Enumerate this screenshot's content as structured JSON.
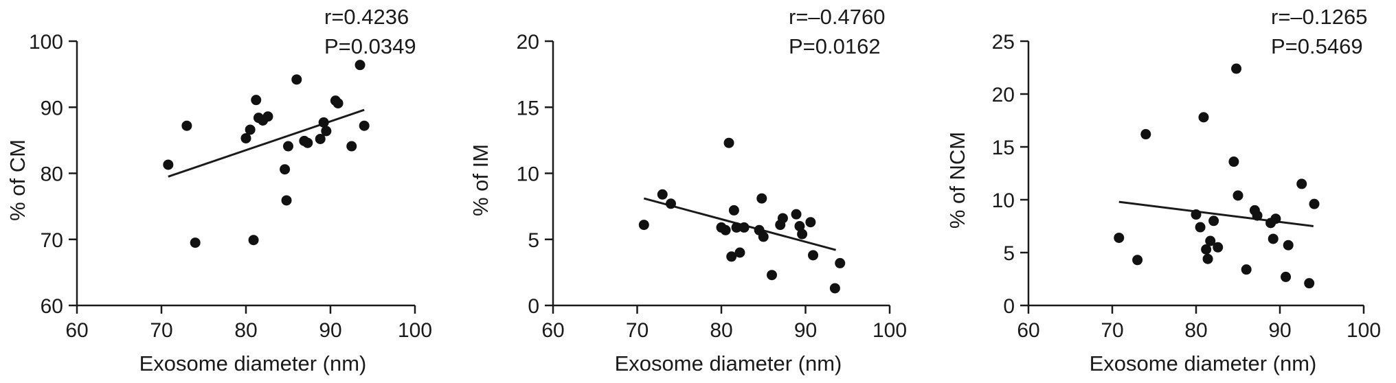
{
  "chart_data": [
    {
      "type": "scatter",
      "xlabel": "Exosome diameter (nm)",
      "ylabel": "% of CM",
      "xlim": [
        60,
        100
      ],
      "ylim": [
        60,
        100
      ],
      "xticks": [
        60,
        70,
        80,
        90,
        100
      ],
      "yticks": [
        60,
        70,
        80,
        90,
        100
      ],
      "xtick_labels": [
        "60",
        "70",
        "80",
        "90",
        "100"
      ],
      "ytick_labels": [
        "60",
        "70",
        "80",
        "90",
        "100"
      ],
      "stats": [
        "r=0.4236",
        "P=0.0349"
      ],
      "regression": {
        "x": [
          70.8,
          94
        ],
        "y": [
          79.5,
          89.6
        ]
      },
      "points": [
        {
          "x": 70.8,
          "y": 81.3
        },
        {
          "x": 73.0,
          "y": 87.2
        },
        {
          "x": 74.0,
          "y": 69.5
        },
        {
          "x": 80.0,
          "y": 85.3
        },
        {
          "x": 80.5,
          "y": 86.6
        },
        {
          "x": 80.9,
          "y": 69.9
        },
        {
          "x": 81.2,
          "y": 91.1
        },
        {
          "x": 81.5,
          "y": 88.4
        },
        {
          "x": 82.0,
          "y": 88.0
        },
        {
          "x": 82.6,
          "y": 88.6
        },
        {
          "x": 84.6,
          "y": 80.6
        },
        {
          "x": 84.8,
          "y": 75.9
        },
        {
          "x": 85.0,
          "y": 84.1
        },
        {
          "x": 86.0,
          "y": 94.2
        },
        {
          "x": 86.9,
          "y": 84.9
        },
        {
          "x": 87.3,
          "y": 84.6
        },
        {
          "x": 88.8,
          "y": 85.2
        },
        {
          "x": 89.2,
          "y": 87.7
        },
        {
          "x": 89.5,
          "y": 86.4
        },
        {
          "x": 90.6,
          "y": 91.0
        },
        {
          "x": 90.9,
          "y": 90.6
        },
        {
          "x": 92.5,
          "y": 84.1
        },
        {
          "x": 93.5,
          "y": 96.4
        },
        {
          "x": 94.0,
          "y": 87.2
        }
      ]
    },
    {
      "type": "scatter",
      "xlabel": "Exosome diameter (nm)",
      "ylabel": "% of IM",
      "xlim": [
        60,
        100
      ],
      "ylim": [
        0,
        20
      ],
      "xticks": [
        60,
        70,
        80,
        90,
        100
      ],
      "yticks": [
        0,
        5,
        10,
        15,
        20
      ],
      "xtick_labels": [
        "60",
        "70",
        "80",
        "90",
        "100"
      ],
      "ytick_labels": [
        "0",
        "5",
        "10",
        "15",
        "20"
      ],
      "stats": [
        "r=–0.4760",
        "P=0.0162"
      ],
      "regression": {
        "x": [
          70.8,
          93.6
        ],
        "y": [
          8.1,
          4.2
        ]
      },
      "points": [
        {
          "x": 70.8,
          "y": 6.1
        },
        {
          "x": 73.0,
          "y": 8.4
        },
        {
          "x": 74.0,
          "y": 7.7
        },
        {
          "x": 80.0,
          "y": 5.9
        },
        {
          "x": 80.5,
          "y": 5.7
        },
        {
          "x": 80.9,
          "y": 12.3
        },
        {
          "x": 81.2,
          "y": 3.7
        },
        {
          "x": 81.5,
          "y": 7.2
        },
        {
          "x": 81.8,
          "y": 5.9
        },
        {
          "x": 82.2,
          "y": 4.0
        },
        {
          "x": 82.7,
          "y": 5.9
        },
        {
          "x": 84.5,
          "y": 5.7
        },
        {
          "x": 84.8,
          "y": 8.1
        },
        {
          "x": 85.0,
          "y": 5.2
        },
        {
          "x": 86.0,
          "y": 2.3
        },
        {
          "x": 87.0,
          "y": 6.1
        },
        {
          "x": 87.3,
          "y": 6.6
        },
        {
          "x": 88.9,
          "y": 6.9
        },
        {
          "x": 89.3,
          "y": 6.0
        },
        {
          "x": 89.6,
          "y": 5.4
        },
        {
          "x": 90.6,
          "y": 6.3
        },
        {
          "x": 90.9,
          "y": 3.8
        },
        {
          "x": 93.5,
          "y": 1.3
        },
        {
          "x": 94.1,
          "y": 3.2
        }
      ]
    },
    {
      "type": "scatter",
      "xlabel": "Exosome diameter (nm)",
      "ylabel": "% of NCM",
      "xlim": [
        60,
        100
      ],
      "ylim": [
        0,
        25
      ],
      "xticks": [
        60,
        70,
        80,
        90,
        100
      ],
      "yticks": [
        0,
        5,
        10,
        15,
        20,
        25
      ],
      "xtick_labels": [
        "60",
        "70",
        "80",
        "90",
        "100"
      ],
      "ytick_labels": [
        "0",
        "5",
        "10",
        "15",
        "20",
        "25"
      ],
      "stats": [
        "r=–0.1265",
        "P=0.5469"
      ],
      "regression": {
        "x": [
          70.8,
          94
        ],
        "y": [
          9.8,
          7.5
        ]
      },
      "points": [
        {
          "x": 70.8,
          "y": 6.4
        },
        {
          "x": 73.0,
          "y": 4.3
        },
        {
          "x": 74.0,
          "y": 16.2
        },
        {
          "x": 80.0,
          "y": 8.6
        },
        {
          "x": 80.5,
          "y": 7.4
        },
        {
          "x": 80.9,
          "y": 17.8
        },
        {
          "x": 81.2,
          "y": 5.3
        },
        {
          "x": 81.4,
          "y": 4.4
        },
        {
          "x": 81.7,
          "y": 6.1
        },
        {
          "x": 82.1,
          "y": 8.0
        },
        {
          "x": 82.6,
          "y": 5.5
        },
        {
          "x": 84.5,
          "y": 13.6
        },
        {
          "x": 84.8,
          "y": 22.4
        },
        {
          "x": 85.0,
          "y": 10.4
        },
        {
          "x": 86.0,
          "y": 3.4
        },
        {
          "x": 87.0,
          "y": 9.0
        },
        {
          "x": 87.3,
          "y": 8.5
        },
        {
          "x": 88.9,
          "y": 7.8
        },
        {
          "x": 89.2,
          "y": 6.3
        },
        {
          "x": 89.5,
          "y": 8.2
        },
        {
          "x": 90.7,
          "y": 2.7
        },
        {
          "x": 91.0,
          "y": 5.7
        },
        {
          "x": 92.6,
          "y": 11.5
        },
        {
          "x": 93.5,
          "y": 2.1
        },
        {
          "x": 94.1,
          "y": 9.6
        }
      ]
    }
  ]
}
